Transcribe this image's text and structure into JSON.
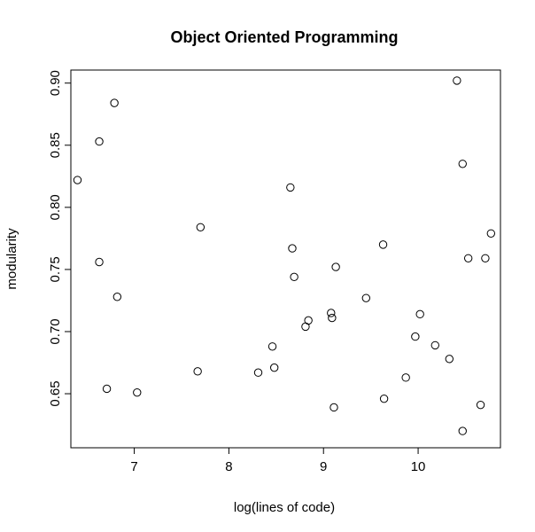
{
  "chart_data": {
    "type": "scatter",
    "title": "Object Oriented Programming",
    "xlabel": "log(lines of code)",
    "ylabel": "modularity",
    "xlim": [
      6.33,
      10.87
    ],
    "ylim": [
      0.6065,
      0.9105
    ],
    "x_ticks": [
      "7",
      "8",
      "9",
      "10"
    ],
    "y_ticks": [
      "0.65",
      "0.70",
      "0.75",
      "0.80",
      "0.85",
      "0.90"
    ],
    "grid": false,
    "marker": "open-circle",
    "points": [
      {
        "x": 6.4,
        "y": 0.822
      },
      {
        "x": 6.63,
        "y": 0.853
      },
      {
        "x": 6.63,
        "y": 0.756
      },
      {
        "x": 6.71,
        "y": 0.654
      },
      {
        "x": 6.79,
        "y": 0.884
      },
      {
        "x": 6.82,
        "y": 0.728
      },
      {
        "x": 7.03,
        "y": 0.651
      },
      {
        "x": 7.67,
        "y": 0.668
      },
      {
        "x": 7.7,
        "y": 0.784
      },
      {
        "x": 8.31,
        "y": 0.667
      },
      {
        "x": 8.46,
        "y": 0.688
      },
      {
        "x": 8.48,
        "y": 0.671
      },
      {
        "x": 8.65,
        "y": 0.816
      },
      {
        "x": 8.67,
        "y": 0.767
      },
      {
        "x": 8.69,
        "y": 0.744
      },
      {
        "x": 8.81,
        "y": 0.704
      },
      {
        "x": 8.84,
        "y": 0.709
      },
      {
        "x": 9.08,
        "y": 0.715
      },
      {
        "x": 9.09,
        "y": 0.711
      },
      {
        "x": 9.11,
        "y": 0.639
      },
      {
        "x": 9.13,
        "y": 0.752
      },
      {
        "x": 9.45,
        "y": 0.727
      },
      {
        "x": 9.63,
        "y": 0.77
      },
      {
        "x": 9.64,
        "y": 0.646
      },
      {
        "x": 9.87,
        "y": 0.663
      },
      {
        "x": 9.97,
        "y": 0.696
      },
      {
        "x": 10.02,
        "y": 0.714
      },
      {
        "x": 10.18,
        "y": 0.689
      },
      {
        "x": 10.33,
        "y": 0.678
      },
      {
        "x": 10.41,
        "y": 0.902
      },
      {
        "x": 10.47,
        "y": 0.835
      },
      {
        "x": 10.47,
        "y": 0.62
      },
      {
        "x": 10.53,
        "y": 0.759
      },
      {
        "x": 10.66,
        "y": 0.641
      },
      {
        "x": 10.71,
        "y": 0.759
      },
      {
        "x": 10.77,
        "y": 0.779
      }
    ]
  }
}
